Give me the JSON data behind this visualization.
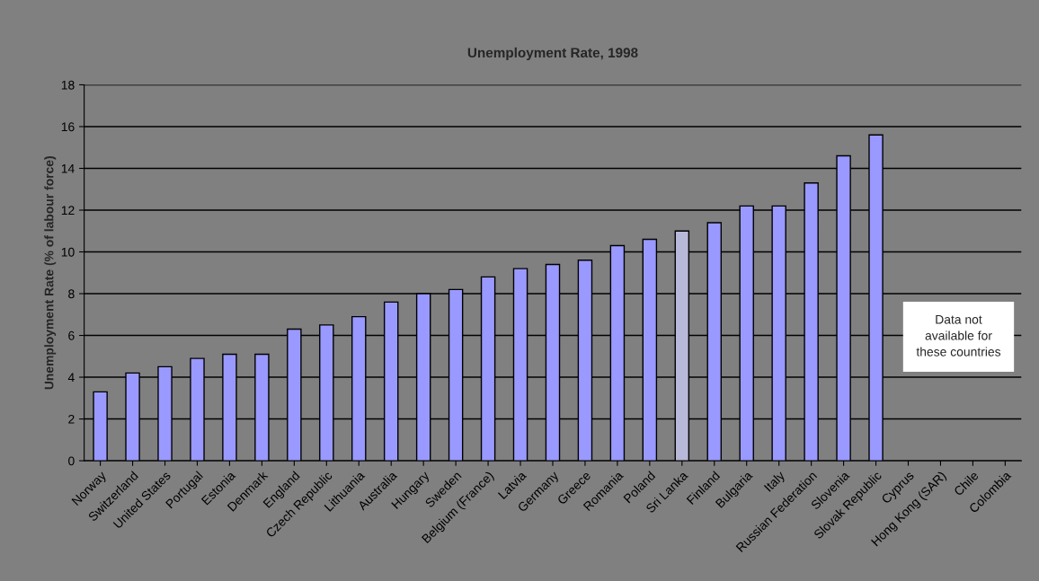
{
  "chart_data": {
    "type": "bar",
    "title": "Unemployment Rate, 1998",
    "ylabel": "Unemployment Rate (% of labour force)",
    "categories": [
      "Norway",
      "Switzerland",
      "United States",
      "Portugal",
      "Estonia",
      "Denmark",
      "England",
      "Czech Republic",
      "Lithuania",
      "Australia",
      "Hungary",
      "Sweden",
      "Belgium (France)",
      "Latvia",
      "Germany",
      "Greece",
      "Romania",
      "Poland",
      "Sri Lanka",
      "Finland",
      "Bulgaria",
      "Italy",
      "Russian Federation",
      "Slovenia",
      "Slovak Republic",
      "Cyprus",
      "Hong Kong (SAR)",
      "Chile",
      "Colombia"
    ],
    "values": [
      3.3,
      4.2,
      4.5,
      4.9,
      5.1,
      5.1,
      6.3,
      6.5,
      6.9,
      7.6,
      8.0,
      8.2,
      8.8,
      9.2,
      9.4,
      9.6,
      10.3,
      10.6,
      11.0,
      11.4,
      12.2,
      12.2,
      13.3,
      14.6,
      15.6,
      null,
      null,
      null,
      null
    ],
    "colors": [
      "#9999ff",
      "#9999ff",
      "#9999ff",
      "#9999ff",
      "#9999ff",
      "#9999ff",
      "#9999ff",
      "#9999ff",
      "#9999ff",
      "#9999ff",
      "#9999ff",
      "#9999ff",
      "#9999ff",
      "#9999ff",
      "#9999ff",
      "#9999ff",
      "#9999ff",
      "#9999ff",
      "#b8b8d8",
      "#9999ff",
      "#9999ff",
      "#9999ff",
      "#9999ff",
      "#9999ff",
      "#9999ff",
      "#9999ff",
      "#9999ff",
      "#9999ff",
      "#9999ff"
    ],
    "ylim": [
      0,
      18
    ],
    "yticks": [
      0,
      2,
      4,
      6,
      8,
      10,
      12,
      14,
      16,
      18
    ],
    "grid": "y",
    "annotations": [
      "Data not\navailable for\nthese countries"
    ]
  }
}
